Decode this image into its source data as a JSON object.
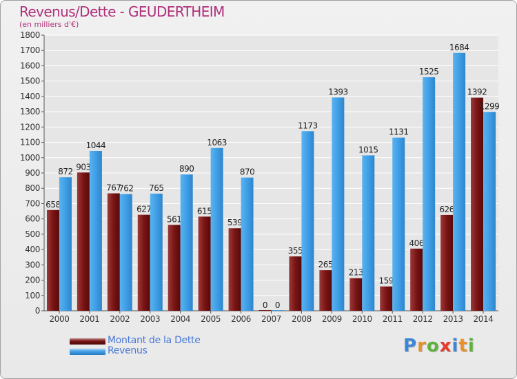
{
  "title": "Revenus/Dette - GEUDERTHEIM",
  "subtitle": "(en milliers d'€)",
  "logo": {
    "letters": [
      "P",
      "r",
      "o",
      "x",
      "i",
      "t",
      "i"
    ],
    "colors": [
      "#3c86d8",
      "#e8902a",
      "#5fb23a",
      "#e53b2c",
      "#3c86d8",
      "#e8902a",
      "#5fb23a"
    ]
  },
  "colors": {
    "dette": "#7a1414",
    "revenus": "#3f9ee6",
    "grid": "#ffffff",
    "title": "#b0307a",
    "legend_text": "#4a78d6"
  },
  "chart_data": {
    "type": "bar",
    "title": "Revenus/Dette - GEUDERTHEIM",
    "subtitle": "(en milliers d'€)",
    "categories": [
      "2000",
      "2001",
      "2002",
      "2003",
      "2004",
      "2005",
      "2006",
      "2007",
      "2008",
      "2009",
      "2010",
      "2011",
      "2012",
      "2013",
      "2014"
    ],
    "series": [
      {
        "name": "Montant de la Dette",
        "color": "#7a1414",
        "values": [
          658,
          903,
          767,
          627,
          561,
          615,
          539,
          0,
          355,
          265,
          213,
          159,
          406,
          626,
          1392
        ]
      },
      {
        "name": "Revenus",
        "color": "#3f9ee6",
        "values": [
          872,
          1044,
          762,
          765,
          890,
          1063,
          870,
          0,
          1173,
          1393,
          1015,
          1131,
          1525,
          1684,
          1299
        ]
      }
    ],
    "ylim": [
      0,
      1800
    ],
    "yticks": [
      0,
      100,
      200,
      300,
      400,
      500,
      600,
      700,
      800,
      900,
      1000,
      1100,
      1200,
      1300,
      1400,
      1500,
      1600,
      1700,
      1800
    ],
    "grid": true,
    "legend_position": "bottom-left"
  }
}
